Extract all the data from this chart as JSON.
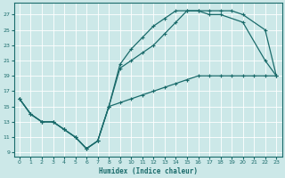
{
  "xlabel": "Humidex (Indice chaleur)",
  "bg_color": "#cce8e8",
  "grid_color": "#aacccc",
  "line_color": "#1a6b6b",
  "xlim": [
    -0.5,
    23.5
  ],
  "ylim": [
    8.5,
    28.5
  ],
  "xticks": [
    0,
    1,
    2,
    3,
    4,
    5,
    6,
    7,
    8,
    9,
    10,
    11,
    12,
    13,
    14,
    15,
    16,
    17,
    18,
    19,
    20,
    21,
    22,
    23
  ],
  "yticks": [
    9,
    11,
    13,
    15,
    17,
    19,
    21,
    23,
    25,
    27
  ],
  "line1": {
    "x": [
      0,
      1,
      2,
      3,
      4,
      5,
      6,
      7,
      8,
      9,
      10,
      11,
      12,
      13,
      14,
      15,
      16,
      17,
      18,
      20,
      22,
      23
    ],
    "y": [
      16,
      14,
      13,
      13,
      12,
      11,
      9.5,
      10.5,
      15,
      20,
      21,
      22,
      23,
      24.5,
      26,
      27.5,
      27.5,
      27,
      27,
      26,
      21,
      19
    ]
  },
  "line2": {
    "x": [
      0,
      1,
      2,
      3,
      4,
      5,
      6,
      7,
      8,
      9,
      10,
      11,
      12,
      13,
      14,
      15,
      16,
      17,
      18,
      19,
      20,
      22,
      23
    ],
    "y": [
      16,
      14,
      13,
      13,
      12,
      11,
      9.5,
      10.5,
      15,
      20.5,
      22.5,
      24,
      25.5,
      26.5,
      27.5,
      27.5,
      27.5,
      27.5,
      27.5,
      27.5,
      27,
      25,
      19
    ]
  },
  "line3": {
    "x": [
      0,
      1,
      2,
      3,
      4,
      5,
      6,
      7,
      8,
      9,
      10,
      11,
      12,
      13,
      14,
      15,
      16,
      17,
      18,
      19,
      20,
      21,
      22,
      23
    ],
    "y": [
      16,
      14,
      13,
      13,
      12,
      11,
      9.5,
      10.5,
      15,
      15.5,
      16,
      16.5,
      17,
      17.5,
      18,
      18.5,
      19,
      19,
      19,
      19,
      19,
      19,
      19,
      19
    ]
  }
}
